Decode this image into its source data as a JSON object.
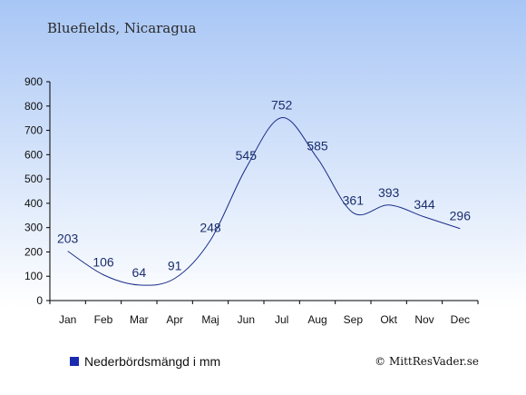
{
  "chart_data": {
    "type": "line",
    "title": "Bluefields, Nicaragua",
    "categories": [
      "Jan",
      "Feb",
      "Mar",
      "Apr",
      "Maj",
      "Jun",
      "Jul",
      "Aug",
      "Sep",
      "Okt",
      "Nov",
      "Dec"
    ],
    "series": [
      {
        "name": "Nederbördsmängd i mm",
        "values": [
          203,
          106,
          64,
          91,
          248,
          545,
          752,
          585,
          361,
          393,
          344,
          296
        ]
      }
    ],
    "ylim": [
      0,
      900
    ],
    "yticks": [
      0,
      100,
      200,
      300,
      400,
      500,
      600,
      700,
      800,
      900
    ],
    "xlabel": "",
    "ylabel": "",
    "grid": false,
    "legend_position": "bottom-left",
    "colors": {
      "line": "#1a2e8a",
      "legend_marker": "#1a2bb0",
      "background_top": "#a8c6f5",
      "background_bottom": "#ffffff"
    }
  },
  "legend": {
    "label": "Nederbördsmängd i mm"
  },
  "credit": {
    "text": "© MittResVader.se"
  }
}
